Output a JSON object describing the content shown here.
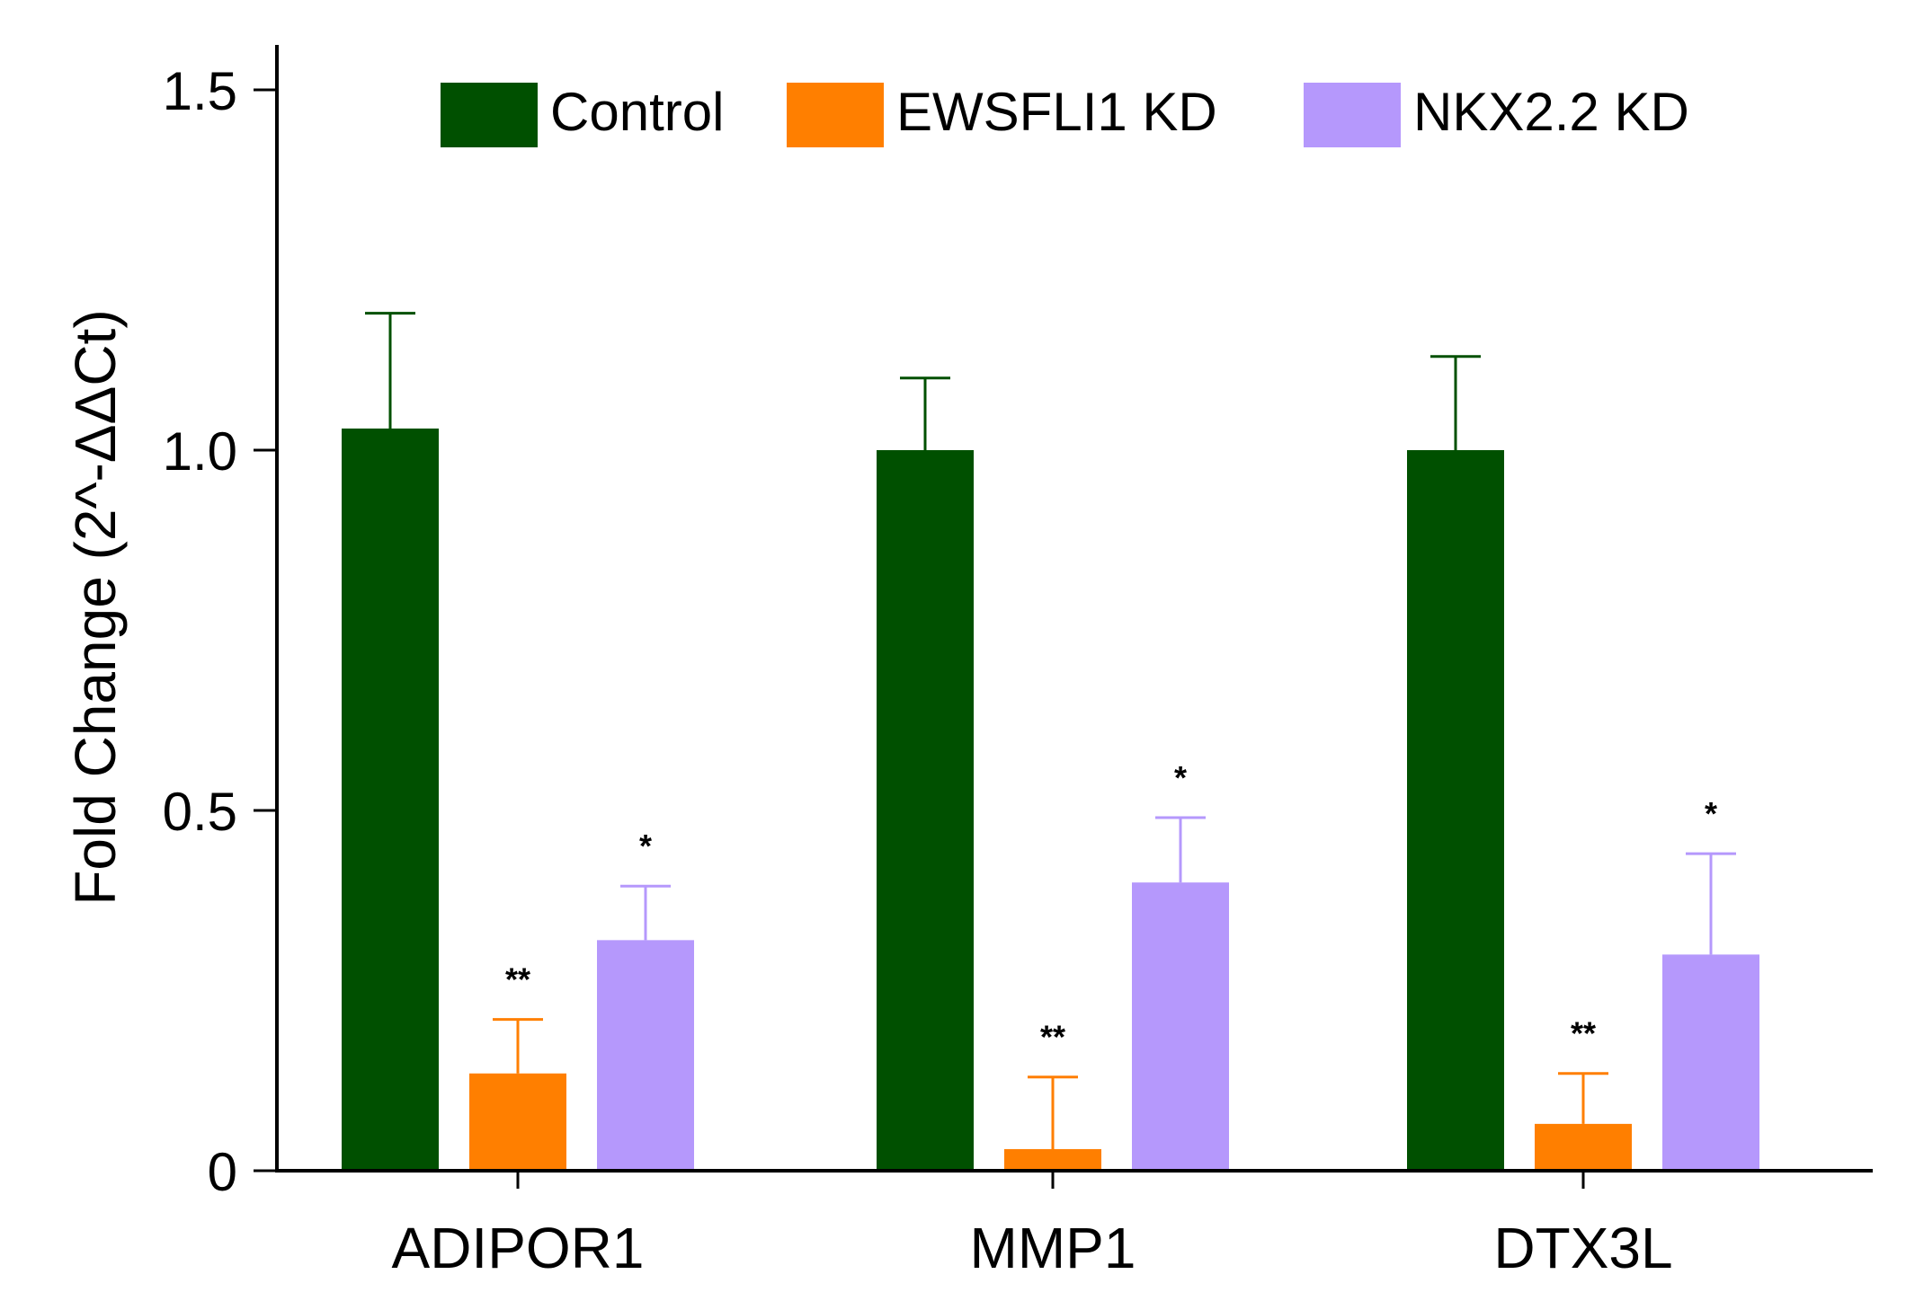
{
  "chart_data": {
    "type": "bar",
    "title": "",
    "xlabel": "",
    "ylabel": "Fold Change (2^-ΔΔCt)",
    "ylim": [
      0,
      1.6
    ],
    "yticks": [
      {
        "value": 0,
        "label": "0"
      },
      {
        "value": 0.5,
        "label": "0.5"
      },
      {
        "value": 1.0,
        "label": "1.0"
      },
      {
        "value": 1.5,
        "label": "1.5"
      }
    ],
    "categories": [
      "ADIPOR1",
      "MMP1",
      "DTX3L"
    ],
    "series": [
      {
        "name": "Control",
        "color": "#005000",
        "values": [
          1.03,
          1.0,
          1.0
        ],
        "errors": [
          0.16,
          0.1,
          0.13
        ],
        "significance": [
          "",
          "",
          ""
        ]
      },
      {
        "name": "EWSFLI1 KD",
        "color": "#ff7f00",
        "values": [
          0.135,
          0.03,
          0.065
        ],
        "errors": [
          0.075,
          0.1,
          0.07
        ],
        "significance": [
          "**",
          "**",
          "**"
        ]
      },
      {
        "name": "NKX2.2 KD",
        "color": "#b598fc",
        "values": [
          0.32,
          0.4,
          0.3
        ],
        "errors": [
          0.075,
          0.09,
          0.14
        ],
        "significance": [
          "*",
          "*",
          "*"
        ]
      }
    ],
    "legend_position": "top",
    "grid": false
  }
}
